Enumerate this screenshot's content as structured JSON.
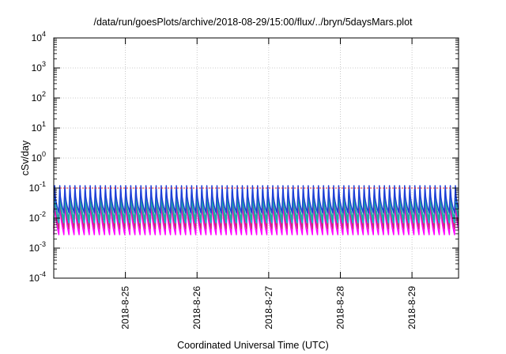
{
  "chart_data": {
    "type": "line",
    "title": "/data/run/goesPlots/archive/2018-08-29/15:00/flux/../bryn/5daysMars.plot",
    "xlabel": "Coordinated Universal Time (UTC)",
    "ylabel": "cSv/day",
    "yscale": "log",
    "ylim_exp": [
      -4,
      4
    ],
    "yticks_exp": [
      -4,
      -3,
      -2,
      -1,
      0,
      1,
      2,
      3,
      4
    ],
    "xlim_days": [
      0,
      5.65
    ],
    "xticks": [
      {
        "label": "2018-8-25",
        "day": 1.0
      },
      {
        "label": "2018-8-26",
        "day": 2.0
      },
      {
        "label": "2018-8-27",
        "day": 3.0
      },
      {
        "label": "2018-8-28",
        "day": 4.0
      },
      {
        "label": "2018-8-29",
        "day": 5.0
      }
    ],
    "grid": true,
    "reference_line": {
      "value": 0.1,
      "color": "#e8202a"
    },
    "sawtooth": {
      "period_days": 0.0708,
      "decay_fraction": 0.82
    },
    "series": [
      {
        "color": "#ff00ff",
        "peak": 0.05,
        "trough": 0.0028
      },
      {
        "color": "#cc2a7a",
        "peak": 0.065,
        "trough": 0.0045
      },
      {
        "color": "#00bcd4",
        "peak": 0.08,
        "trough": 0.007
      },
      {
        "color": "#26a69a",
        "peak": 0.09,
        "trough": 0.009
      },
      {
        "color": "#1e3fd8",
        "peak": 0.12,
        "trough": 0.015
      }
    ]
  }
}
